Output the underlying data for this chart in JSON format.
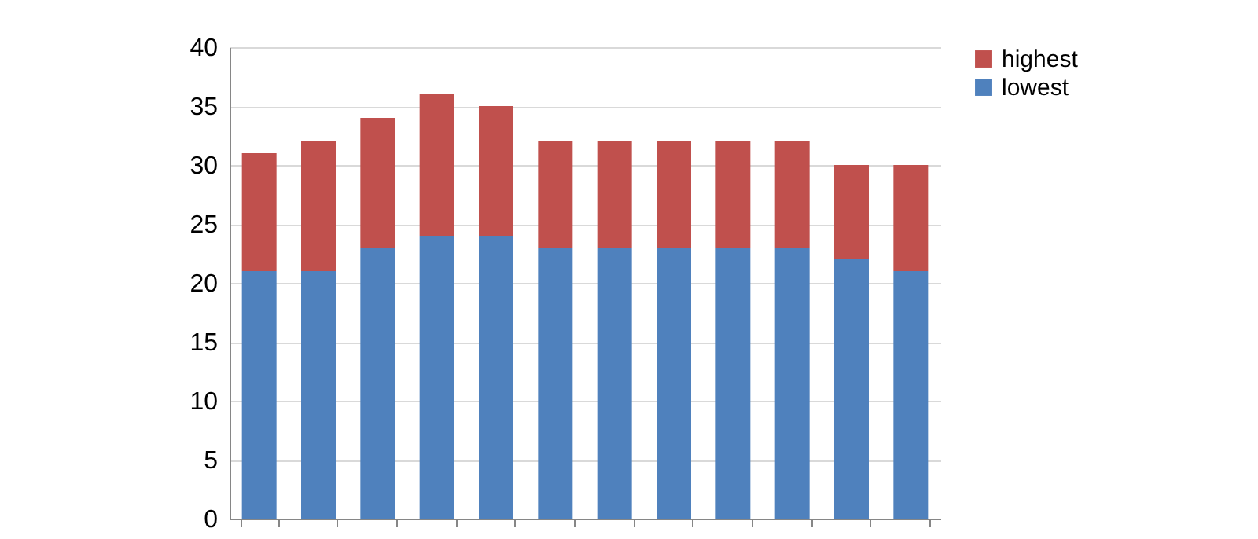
{
  "chart_data": {
    "type": "bar",
    "stacked": true,
    "categories": [
      null,
      null,
      null,
      null,
      null,
      null,
      null,
      null,
      null,
      null,
      null,
      null
    ],
    "series": [
      {
        "name": "lowest",
        "color": "#4f81bd",
        "values": [
          21,
          21,
          23,
          24,
          24,
          23,
          23,
          23,
          23,
          23,
          22,
          21
        ]
      },
      {
        "name": "highest",
        "color": "#c0504d",
        "values": [
          10,
          11,
          11,
          12,
          11,
          9,
          9,
          9,
          9,
          9,
          8,
          9
        ]
      }
    ],
    "ylim": [
      0,
      40
    ],
    "yticks": [
      0,
      5,
      10,
      15,
      20,
      25,
      30,
      35,
      40
    ],
    "grid": "y",
    "legend": "right",
    "tick_labels": "y"
  }
}
